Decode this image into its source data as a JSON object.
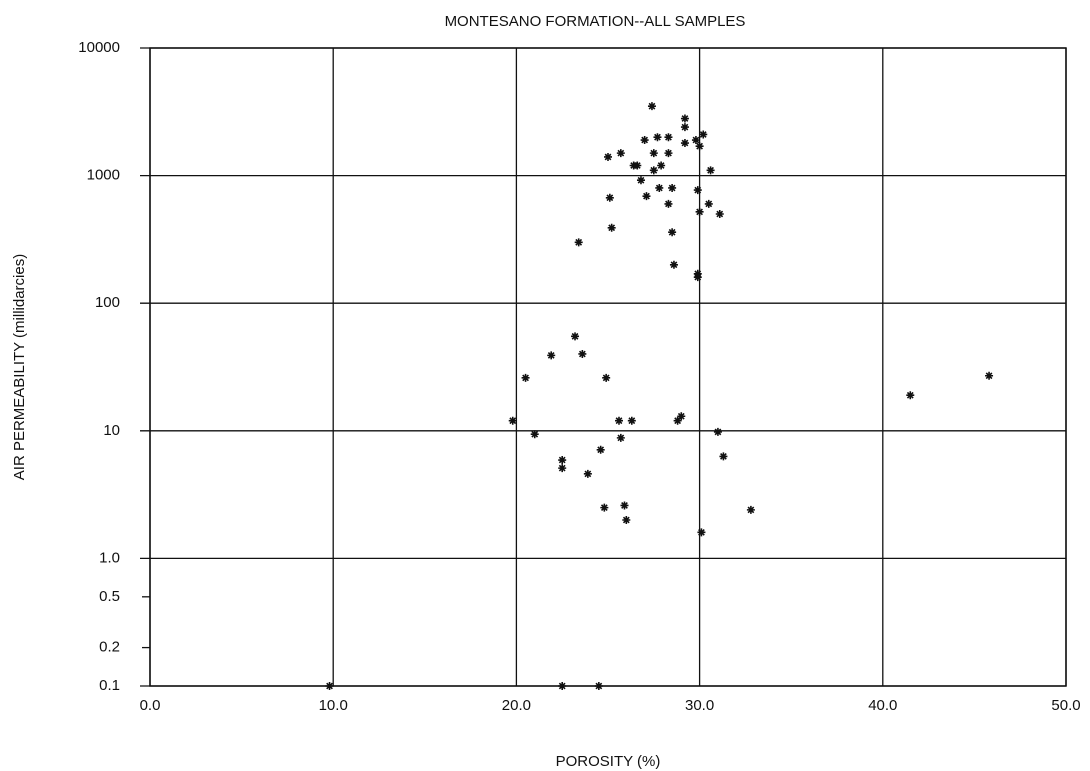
{
  "chart_data": {
    "type": "scatter",
    "title": "MONTESANO FORMATION--ALL SAMPLES",
    "x_label": "POROSITY (%)",
    "y_label": "AIR PERMEABILITY  (millidarcies)",
    "log_y": true,
    "grid": true,
    "color": "#111111",
    "xlim": [
      0,
      50
    ],
    "xticks": [
      {
        "value": 0,
        "label": "0.0"
      },
      {
        "value": 10,
        "label": "10.0"
      },
      {
        "value": 20,
        "label": "20.0"
      },
      {
        "value": 30,
        "label": "30.0"
      },
      {
        "value": 40,
        "label": "40.0"
      },
      {
        "value": 50,
        "label": "50.0"
      }
    ],
    "ylim": [
      0.1,
      10000
    ],
    "yticks": [
      0.1,
      0.2,
      0.5,
      {
        "value": 1,
        "label": "1.0"
      },
      10,
      100,
      1000,
      10000
    ],
    "series": [
      {
        "name": null,
        "x": [
          27.4,
          29.2,
          29.2,
          27.0,
          27.7,
          28.3,
          29.2,
          29.8,
          30.2,
          30.0,
          25.7,
          25.0,
          27.5,
          28.3,
          26.4,
          26.6,
          27.9,
          27.5,
          30.6,
          26.8,
          27.8,
          28.5,
          27.1,
          25.1,
          28.3,
          30.5,
          30.0,
          31.1,
          29.9,
          25.2,
          28.5,
          23.4,
          28.6,
          29.9,
          29.9,
          23.2,
          21.9,
          23.6,
          20.5,
          24.9,
          19.8,
          25.6,
          26.3,
          28.8,
          29.0,
          21.0,
          25.7,
          31.0,
          24.6,
          22.5,
          22.5,
          31.3,
          23.9,
          24.8,
          25.9,
          26.0,
          32.8,
          30.1,
          41.5,
          45.8,
          9.8,
          22.5,
          24.5
        ],
        "values": [
          3500,
          2800,
          2400,
          1900,
          2000,
          2000,
          1800,
          1900,
          2100,
          1700,
          1500,
          1400,
          1500,
          1500,
          1200,
          1200,
          1200,
          1100,
          1100,
          920,
          800,
          800,
          690,
          670,
          600,
          600,
          520,
          500,
          770,
          390,
          360,
          300,
          200,
          170,
          160,
          55,
          39,
          40,
          26,
          26,
          12,
          12,
          12,
          12,
          13,
          9.4,
          8.8,
          9.8,
          7.1,
          5.9,
          5.1,
          6.3,
          4.6,
          2.5,
          2.6,
          2.0,
          2.4,
          1.6,
          19,
          27,
          0.1,
          0.1,
          0.1
        ]
      }
    ]
  }
}
